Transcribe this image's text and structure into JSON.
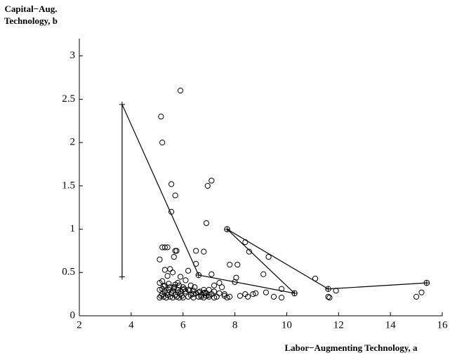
{
  "chart_data": {
    "type": "scatter",
    "ylabel_lines": [
      "Capital−Aug.",
      "Technology, b"
    ],
    "xlabel": "Labor−Augmenting Technology, a",
    "xlim": [
      2,
      16
    ],
    "xticks": [
      2,
      4,
      6,
      8,
      10,
      12,
      14,
      16
    ],
    "ylim": [
      0,
      3.2
    ],
    "yticks": [
      0,
      0.5,
      1,
      1.5,
      2,
      2.5,
      3
    ],
    "series": [
      {
        "marker": "circle",
        "line": false,
        "color": "#000000",
        "x": [
          5.9,
          5.15,
          5.2,
          5.55,
          5.7,
          5.55,
          7.1,
          6.95,
          6.9,
          6.5,
          6.8,
          5.2,
          5.3,
          5.4,
          5.7,
          5.75,
          5.65,
          5.1,
          8.4,
          8.55,
          9.3,
          7.8,
          8.1,
          9.1,
          11.1,
          6.5,
          6.2,
          7.1,
          8.0,
          8.05,
          9.8,
          11.9,
          11.6,
          11.65,
          15.0,
          15.2,
          9.2,
          8.8,
          8.7,
          9.5,
          9.8,
          8.4,
          8.5,
          8.2,
          7.7,
          7.8,
          7.6,
          7.5,
          7.4,
          7.2,
          7.0,
          6.9,
          6.7,
          6.8,
          6.4,
          6.3,
          6.0,
          6.1,
          5.9,
          5.8,
          5.6,
          5.5,
          5.4,
          5.3,
          5.2,
          5.1,
          5.1,
          5.15,
          5.2,
          5.25,
          5.3,
          5.35,
          5.4,
          5.45,
          5.5,
          5.55,
          5.6,
          5.65,
          5.7,
          5.75,
          5.8,
          5.85,
          5.9,
          5.95,
          6.0,
          6.1,
          6.2,
          6.3,
          6.4,
          6.5,
          6.6,
          6.7,
          6.8,
          6.9,
          7.0,
          7.1,
          7.2,
          7.3,
          5.2,
          5.3,
          5.4,
          5.5,
          5.6,
          5.7,
          5.8,
          5.9,
          6.0,
          6.2,
          6.4,
          6.6,
          6.8,
          7.0,
          7.2,
          7.4,
          7.6,
          5.1,
          5.25,
          5.45,
          5.65,
          5.85,
          6.05,
          6.25,
          6.45,
          6.65,
          6.85
        ],
        "y": [
          2.6,
          2.3,
          2.0,
          1.52,
          1.39,
          1.2,
          1.56,
          1.5,
          1.07,
          0.75,
          0.74,
          0.79,
          0.79,
          0.79,
          0.75,
          0.75,
          0.68,
          0.65,
          0.85,
          0.74,
          0.68,
          0.59,
          0.59,
          0.48,
          0.43,
          0.6,
          0.52,
          0.48,
          0.39,
          0.44,
          0.31,
          0.29,
          0.22,
          0.21,
          0.22,
          0.27,
          0.27,
          0.26,
          0.25,
          0.22,
          0.21,
          0.25,
          0.22,
          0.23,
          0.21,
          0.22,
          0.25,
          0.33,
          0.38,
          0.35,
          0.3,
          0.26,
          0.22,
          0.3,
          0.25,
          0.35,
          0.3,
          0.41,
          0.45,
          0.38,
          0.5,
          0.54,
          0.46,
          0.53,
          0.4,
          0.38,
          0.21,
          0.23,
          0.25,
          0.22,
          0.28,
          0.21,
          0.24,
          0.3,
          0.22,
          0.26,
          0.21,
          0.33,
          0.24,
          0.22,
          0.27,
          0.21,
          0.25,
          0.23,
          0.21,
          0.28,
          0.22,
          0.24,
          0.21,
          0.26,
          0.22,
          0.24,
          0.21,
          0.23,
          0.22,
          0.25,
          0.21,
          0.22,
          0.31,
          0.35,
          0.27,
          0.33,
          0.29,
          0.36,
          0.3,
          0.28,
          0.33,
          0.3,
          0.29,
          0.27,
          0.26,
          0.24,
          0.28,
          0.26,
          0.23,
          0.3,
          0.34,
          0.37,
          0.32,
          0.35,
          0.31,
          0.29,
          0.33,
          0.28,
          0.27
        ]
      },
      {
        "marker": "plus",
        "line": true,
        "color": "#000000",
        "x": [
          3.65,
          3.65
        ],
        "y": [
          2.44,
          0.45
        ]
      },
      {
        "marker": "none",
        "line": true,
        "color": "#000000",
        "x": [
          3.65,
          6.6,
          10.3
        ],
        "y": [
          2.44,
          0.47,
          0.26
        ]
      },
      {
        "marker": "none",
        "line": true,
        "color": "#000000",
        "x": [
          10.3,
          7.7,
          11.6,
          15.4
        ],
        "y": [
          0.26,
          1.0,
          0.31,
          0.38
        ]
      },
      {
        "marker": "crossed-circle",
        "line": false,
        "color": "#000000",
        "x": [
          6.6,
          10.3,
          7.7,
          11.6,
          15.4
        ],
        "y": [
          0.47,
          0.26,
          1.0,
          0.31,
          0.38
        ]
      }
    ]
  }
}
